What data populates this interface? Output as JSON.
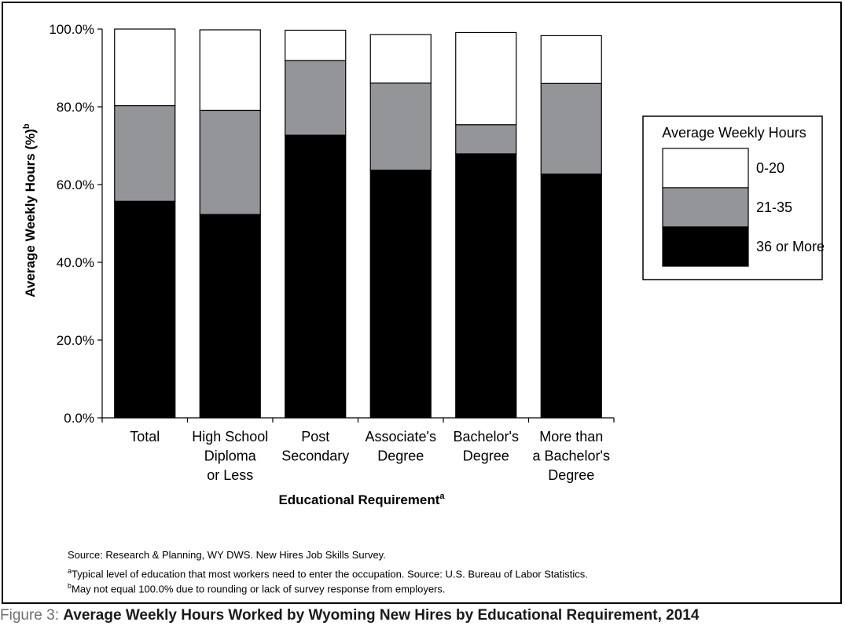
{
  "chart_data": {
    "type": "bar",
    "stacked": true,
    "title": "",
    "xlabel": "Educational Requirement",
    "xlabel_superscript": "a",
    "ylabel": "Average Weekly Hours (%)",
    "ylabel_superscript": "b",
    "ylim": [
      0,
      100
    ],
    "yticks": [
      "0.0%",
      "20.0%",
      "40.0%",
      "60.0%",
      "80.0%",
      "100.0%"
    ],
    "grid": false,
    "legend_position": "right",
    "categories": [
      [
        "Total"
      ],
      [
        "High School",
        "Diploma",
        "or Less"
      ],
      [
        "Post",
        "Secondary"
      ],
      [
        "Associate's",
        "Degree"
      ],
      [
        "Bachelor's",
        "Degree"
      ],
      [
        "More than",
        "a Bachelor's",
        "Degree"
      ]
    ],
    "series": [
      {
        "name": "36 or More",
        "color": "#000000",
        "values": [
          55.7,
          52.3,
          72.7,
          63.7,
          67.9,
          62.7
        ]
      },
      {
        "name": "21-35",
        "color": "#939598",
        "values": [
          24.6,
          26.8,
          19.2,
          22.4,
          7.5,
          23.3
        ]
      },
      {
        "name": "0-20",
        "color": "#ffffff",
        "values": [
          19.7,
          20.7,
          7.8,
          12.5,
          23.7,
          12.3
        ]
      }
    ],
    "legend_title": "Average Weekly Hours"
  },
  "notes": {
    "source": "Source: Research & Planning, WY DWS. New Hires Job Skills Survey.",
    "footnote_a_mark": "a",
    "footnote_a": "Typical level of education that most workers need to enter the occupation. Source: U.S. Bureau of Labor Statistics.",
    "footnote_b_mark": "b",
    "footnote_b": "May not equal 100.0% due to rounding or lack of survey response from employers."
  },
  "caption": {
    "label": "Figure 3:",
    "title": "Average Weekly Hours Worked by Wyoming New Hires by Educational Requirement, 2014"
  }
}
